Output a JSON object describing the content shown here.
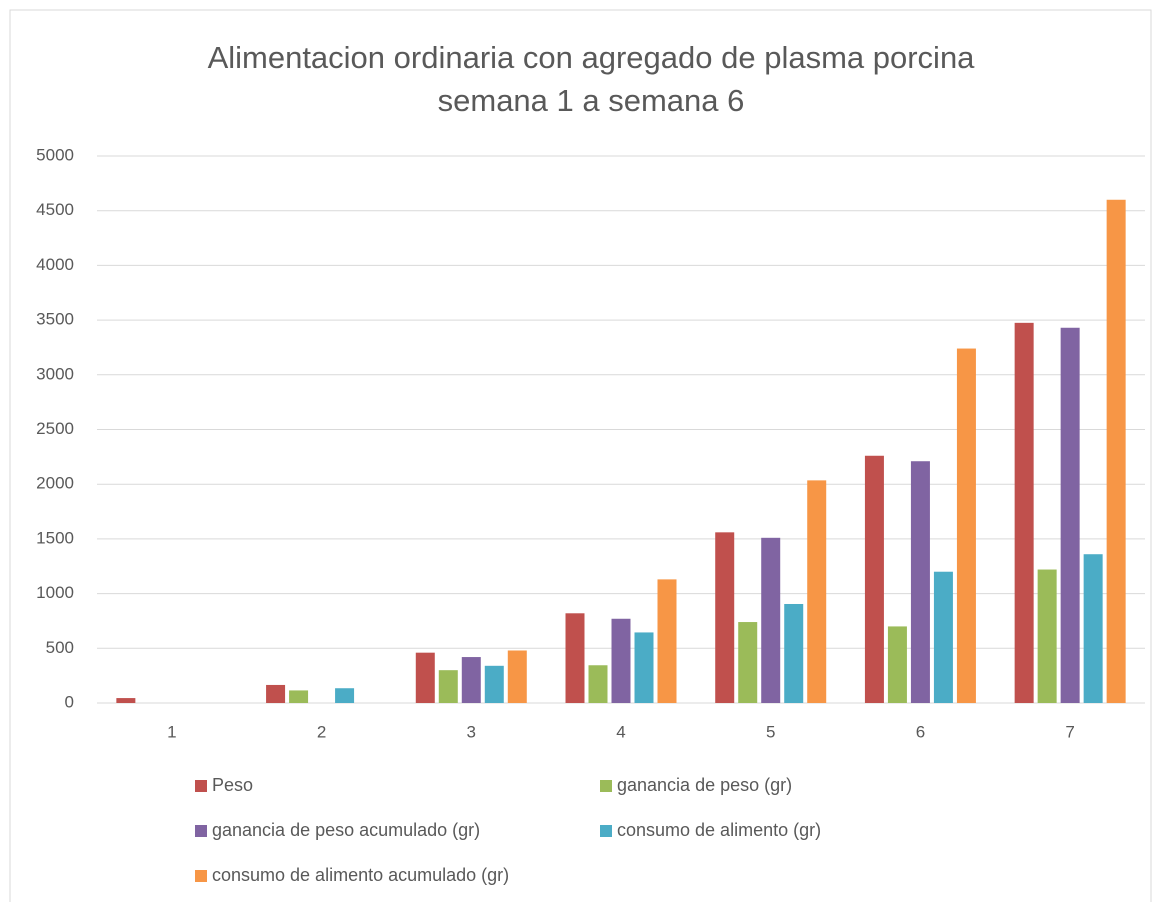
{
  "chart_data": {
    "type": "bar",
    "title": [
      "Alimentacion ordinaria con agregado de plasma porcina",
      "semana 1 a semana 6"
    ],
    "categories": [
      "1",
      "2",
      "3",
      "4",
      "5",
      "6",
      "7"
    ],
    "series": [
      {
        "name": "Peso",
        "color": "#c0504d",
        "values": [
          45,
          165,
          460,
          820,
          1560,
          2260,
          3475
        ]
      },
      {
        "name": "ganancia de peso (gr)",
        "color": "#9bbb59",
        "values": [
          0,
          115,
          300,
          345,
          740,
          700,
          1220
        ]
      },
      {
        "name": "ganancia de peso acumulado (gr)",
        "color": "#8064a2",
        "values": [
          0,
          0,
          420,
          770,
          1510,
          2210,
          3430
        ]
      },
      {
        "name": "consumo de alimento (gr)",
        "color": "#4bacc6",
        "values": [
          0,
          135,
          340,
          645,
          905,
          1200,
          1360
        ]
      },
      {
        "name": "consumo de alimento acumulado (gr)",
        "color": "#f79646",
        "values": [
          0,
          0,
          480,
          1130,
          2035,
          3240,
          4600
        ]
      }
    ],
    "ylim": [
      0,
      5000
    ],
    "yticks": [
      0,
      500,
      1000,
      1500,
      2000,
      2500,
      3000,
      3500,
      4000,
      4500,
      5000
    ],
    "grid": true,
    "legend": "bottom"
  }
}
